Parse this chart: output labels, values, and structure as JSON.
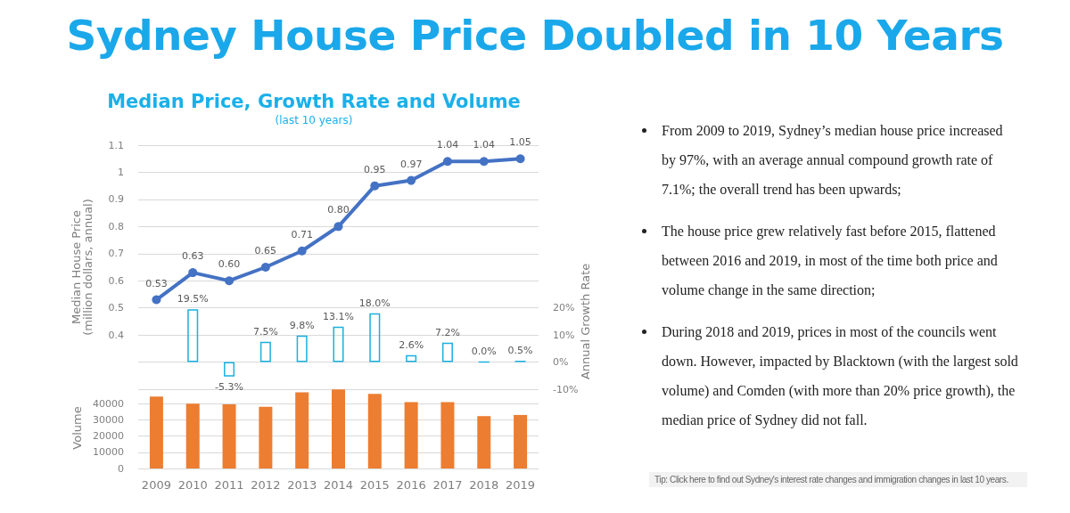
{
  "chart_data": [
    {
      "type": "line",
      "title": "Median Price, Growth Rate and Volume",
      "subtitle": "(last 10 years)",
      "ylabel": "Median House Price\n(million dollars, annual)",
      "y2label": "Annual Growth Rate",
      "categories": [
        "2009",
        "2010",
        "2011",
        "2012",
        "2013",
        "2014",
        "2015",
        "2016",
        "2017",
        "2018",
        "2019"
      ],
      "series": [
        {
          "type": "line",
          "color": "#4472c4",
          "values": [
            0.53,
            0.63,
            0.6,
            0.65,
            0.71,
            0.8,
            0.95,
            0.97,
            1.04,
            1.04,
            1.05
          ],
          "value_labels": [
            "0.53",
            "0.63",
            "0.60",
            "0.65",
            "0.71",
            "0.80",
            "0.95",
            "0.97",
            "1.04",
            "1.04",
            "1.05"
          ]
        },
        {
          "type": "bar",
          "axis": "y2",
          "color": "#1ab0e0",
          "values": [
            null,
            19.5,
            -5.3,
            7.5,
            9.8,
            13.1,
            18.0,
            2.6,
            7.2,
            0.0,
            0.5
          ],
          "value_labels": [
            null,
            "19.5%",
            "-5.3%",
            "7.5%",
            "9.8%",
            "13.1%",
            "18.0%",
            "2.6%",
            "7.2%",
            "0.0%",
            "0.5%"
          ]
        }
      ],
      "ylim": [
        0.2,
        1.1
      ],
      "yticks": [
        {
          "value": 0.2,
          "label": null
        },
        {
          "value": 0.3,
          "label": null
        },
        0.4,
        0.5,
        0.6,
        0.7,
        0.8,
        0.9,
        1,
        1.1
      ],
      "y2lim": [
        -10,
        80
      ],
      "y2ticks": [
        {
          "value": -10,
          "label": "-10%"
        },
        {
          "value": 0,
          "label": "0%"
        },
        {
          "value": 10,
          "label": "10%"
        },
        {
          "value": 20,
          "label": "20%"
        }
      ],
      "marker": "circle",
      "grid": "y",
      "tick_labels": "y"
    },
    {
      "type": "bar",
      "ylabel": "Volume",
      "categories": [
        "2009",
        "2010",
        "2011",
        "2012",
        "2013",
        "2014",
        "2015",
        "2016",
        "2017",
        "2018",
        "2019"
      ],
      "series": [
        {
          "color": "#ed7d31",
          "values": [
            44400,
            40000,
            39500,
            38000,
            47000,
            48800,
            46000,
            41000,
            41000,
            32300,
            33000
          ]
        }
      ],
      "ylim": [
        0,
        50000
      ],
      "yticks": [
        0,
        10000,
        20000,
        30000,
        40000
      ],
      "grid": "y"
    },
    {
      "type": "other",
      "title": "Sydney House Price Doubled in 10 Years",
      "annotations": [
        "From 2009 to 2019, Sydney’s median house price increased by 97%, with an average annual compound growth rate of 7.1%; the overall trend has been upwards;",
        "The house price grew relatively fast before 2015, flattened between 2016 and 2019, in most of the time both price and volume change in the same direction;",
        "During 2018 and 2019, prices in most of the councils went down. However, impacted by Blacktown (with the largest sold volume) and Comden (with more than 20% price growth), the median price of Sydney did not fall.",
        "Tip: Click here to find out Sydney's interest rate changes and immigration changes in last 10 years."
      ]
    }
  ]
}
